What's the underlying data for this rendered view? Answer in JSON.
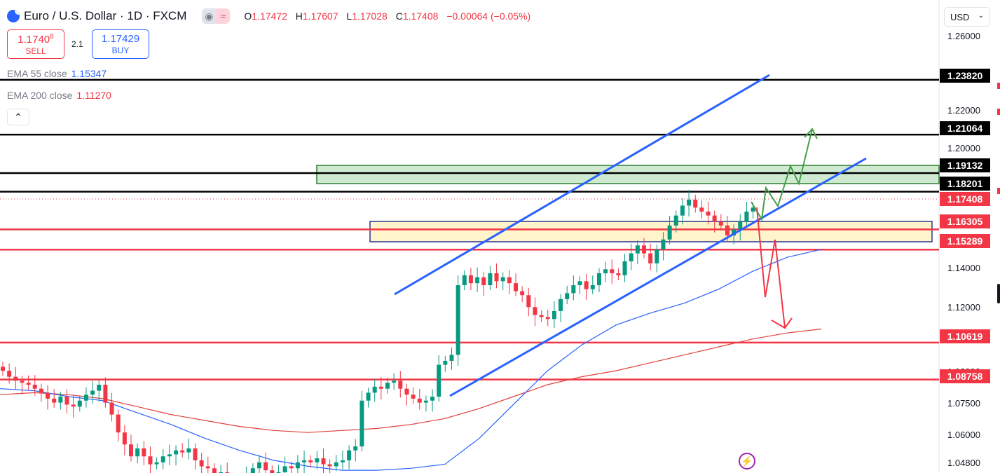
{
  "header": {
    "symbol_title": "Euro / U.S. Dollar · 1D · FXCM",
    "ohlc": {
      "o_label": "O",
      "o_value": "1.17472",
      "h_label": "H",
      "h_value": "1.17607",
      "l_label": "L",
      "l_value": "1.17028",
      "c_label": "C",
      "c_value": "1.17408",
      "change": "−0.00064 (−0.05%)"
    },
    "pill_icons": [
      "eye-icon",
      "approx-icon"
    ],
    "pill_symbol_right": "≈"
  },
  "trade": {
    "sell_price_main": "1.1740",
    "sell_price_sup": "8",
    "sell_label": "SELL",
    "spread": "2.1",
    "buy_price": "1.17429",
    "buy_label": "BUY"
  },
  "indicators": [
    {
      "name": "EMA 55 close",
      "value": "1.15347"
    },
    {
      "name": "EMA 200 close",
      "value": "1.11270"
    }
  ],
  "currency_selector": "USD",
  "price_axis": {
    "ticks": [
      "1.26000",
      "1.22000",
      "1.20000",
      "1.14000",
      "1.12000",
      "1.08000",
      "1.07500",
      "1.06000",
      "1.04800"
    ]
  },
  "price_labels": [
    {
      "value": "1.23820",
      "color": "#000000"
    },
    {
      "value": "1.21064",
      "color": "#000000"
    },
    {
      "value": "1.19132",
      "color": "#000000"
    },
    {
      "value": "1.18201",
      "color": "#000000"
    },
    {
      "value": "1.17408",
      "color": "#f23645"
    },
    {
      "value": "1.16305",
      "color": "#f23645"
    },
    {
      "value": "1.15289",
      "color": "#f23645"
    },
    {
      "value": "1.10619",
      "color": "#f23645"
    },
    {
      "value": "1.08758",
      "color": "#f23645"
    }
  ],
  "colors": {
    "up": "#089981",
    "down": "#f23645",
    "channel": "#2962ff",
    "ema55": "#2962ff",
    "ema200": "#e0403a",
    "resistance_zone": "#c8e6c9",
    "support_zone": "#fff3c4"
  },
  "chart_data": {
    "type": "candlestick",
    "symbol": "EURUSD",
    "timeframe": "1D",
    "ylim": [
      1.042,
      1.268
    ],
    "closes": [
      1.092,
      1.089,
      1.087,
      1.086,
      1.085,
      1.083,
      1.081,
      1.078,
      1.076,
      1.079,
      1.075,
      1.074,
      1.077,
      1.08,
      1.082,
      1.085,
      1.076,
      1.07,
      1.061,
      1.055,
      1.049,
      1.053,
      1.049,
      1.045,
      1.046,
      1.049,
      1.05,
      1.052,
      1.051,
      1.053,
      1.047,
      1.044,
      1.043,
      1.04,
      1.041,
      1.038,
      1.037,
      1.036,
      1.039,
      1.043,
      1.046,
      1.042,
      1.04,
      1.041,
      1.044,
      1.043,
      1.046,
      1.047,
      1.046,
      1.048,
      1.045,
      1.044,
      1.046,
      1.047,
      1.052,
      1.054,
      1.077,
      1.081,
      1.084,
      1.083,
      1.086,
      1.087,
      1.083,
      1.08,
      1.078,
      1.076,
      1.077,
      1.079,
      1.095,
      1.097,
      1.1,
      1.135,
      1.14,
      1.136,
      1.139,
      1.135,
      1.141,
      1.137,
      1.139,
      1.136,
      1.132,
      1.13,
      1.124,
      1.12,
      1.119,
      1.118,
      1.122,
      1.128,
      1.131,
      1.135,
      1.137,
      1.133,
      1.135,
      1.141,
      1.143,
      1.141,
      1.14,
      1.147,
      1.151,
      1.155,
      1.151,
      1.146,
      1.153,
      1.158,
      1.165,
      1.17,
      1.175,
      1.178,
      1.174,
      1.172,
      1.17,
      1.167,
      1.165,
      1.16,
      1.163,
      1.167,
      1.172,
      1.174
    ],
    "ema55": [
      1.083,
      1.082,
      1.079,
      1.077,
      1.071,
      1.065,
      1.058,
      1.052,
      1.047,
      1.044,
      1.042,
      1.042,
      1.043,
      1.045,
      1.058,
      1.075,
      1.092,
      1.105,
      1.115,
      1.121,
      1.126,
      1.133,
      1.142,
      1.149,
      1.153
    ],
    "ema200": [
      1.08,
      1.081,
      1.08,
      1.078,
      1.074,
      1.07,
      1.067,
      1.064,
      1.062,
      1.061,
      1.062,
      1.063,
      1.065,
      1.068,
      1.073,
      1.079,
      1.085,
      1.089,
      1.092,
      1.096,
      1.1,
      1.104,
      1.108,
      1.111,
      1.113
    ],
    "horizontal_levels": [
      1.2382,
      1.21064,
      1.19132,
      1.18201,
      1.16305,
      1.15289,
      1.10619,
      1.08758
    ],
    "zones": [
      {
        "name": "resistance",
        "from": 1.18201,
        "to": 1.19132
      },
      {
        "name": "support",
        "from": 1.15289,
        "to": 1.16305
      }
    ],
    "last_price": 1.17408,
    "scenarios": [
      "bullish-arrow",
      "bearish-arrow"
    ]
  }
}
